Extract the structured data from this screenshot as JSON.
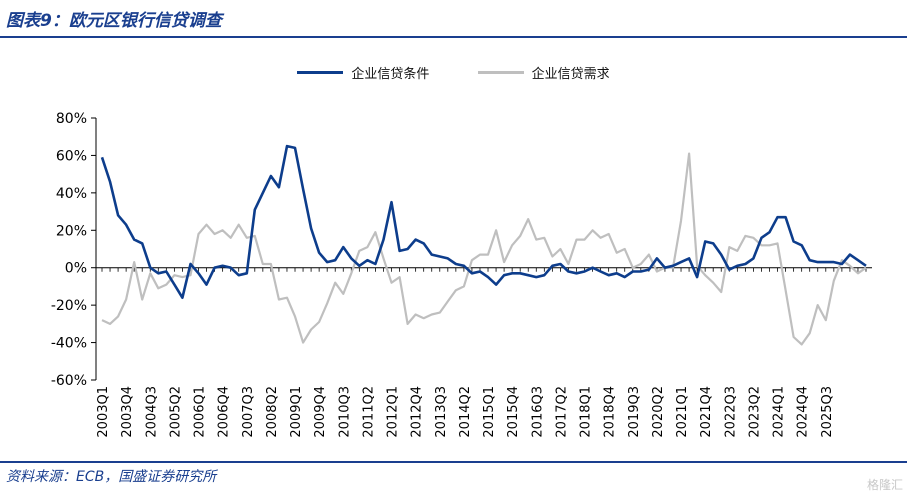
{
  "header": {
    "title": "图表9：欧元区银行信贷调查"
  },
  "footer": {
    "source": "资料来源：ECB，国盛证券研究所",
    "watermark": "格隆汇"
  },
  "chart_data": {
    "type": "line",
    "title": "图表9：欧元区银行信贷调查",
    "xlabel": "",
    "ylabel": "",
    "ylim": [
      -60,
      80
    ],
    "yticks": [
      -60,
      -40,
      -20,
      0,
      20,
      40,
      60,
      80
    ],
    "ytick_labels": [
      "-60%",
      "-40%",
      "-20%",
      "0%",
      "20%",
      "40%",
      "60%",
      "80%"
    ],
    "grid": false,
    "legend": "top-center",
    "x_tick_labels": [
      "2003Q1",
      "2003Q4",
      "2004Q3",
      "2005Q2",
      "2006Q1",
      "2006Q4",
      "2007Q3",
      "2008Q2",
      "2009Q1",
      "2009Q4",
      "2010Q3",
      "2011Q2",
      "2012Q1",
      "2012Q4",
      "2013Q3",
      "2014Q2",
      "2015Q1",
      "2015Q4",
      "2016Q3",
      "2017Q2",
      "2018Q1",
      "2018Q4",
      "2019Q3",
      "2020Q2",
      "2021Q1",
      "2021Q4",
      "2022Q3",
      "2023Q2",
      "2024Q1",
      "2024Q4",
      "2025Q3"
    ],
    "series": [
      {
        "name": "企业信贷条件",
        "color": "#0d3d8c",
        "values": [
          59,
          46,
          28,
          23,
          15,
          13,
          0,
          -3,
          -2,
          -9,
          -16,
          2,
          -3,
          -9,
          0,
          1,
          0,
          -4,
          -3,
          31,
          40,
          49,
          43,
          65,
          64,
          42,
          21,
          8,
          3,
          4,
          11,
          5,
          1,
          4,
          2,
          15,
          35,
          9,
          10,
          15,
          13,
          7,
          6,
          5,
          2,
          1,
          -3,
          -2,
          -5,
          -9,
          -4,
          -3,
          -3,
          -4,
          -5,
          -4,
          1,
          2,
          -2,
          -3,
          -2,
          0,
          -2,
          -4,
          -3,
          -5,
          -2,
          -2,
          -1,
          5,
          0,
          1,
          3,
          5,
          -5,
          14,
          13,
          7,
          -1,
          1,
          2,
          5,
          16,
          19,
          27,
          27,
          14,
          12,
          4,
          3,
          3,
          3,
          2,
          7,
          4,
          1
        ]
      },
      {
        "name": "企业信贷需求",
        "color": "#bfbfbf",
        "values": [
          -28,
          -30,
          -26,
          -17,
          3,
          -17,
          -3,
          -11,
          -9,
          -4,
          -5,
          -4,
          18,
          23,
          18,
          20,
          16,
          23,
          16,
          17,
          2,
          2,
          -17,
          -16,
          -26,
          -40,
          -33,
          -29,
          -19,
          -8,
          -14,
          -3,
          9,
          11,
          19,
          5,
          -8,
          -5,
          -30,
          -25,
          -27,
          -25,
          -24,
          -18,
          -12,
          -10,
          4,
          7,
          7,
          20,
          3,
          12,
          17,
          26,
          15,
          16,
          6,
          10,
          2,
          15,
          15,
          20,
          16,
          18,
          8,
          10,
          0,
          2,
          7,
          -2,
          0,
          0,
          25,
          61,
          1,
          -4,
          -8,
          -13,
          11,
          9,
          17,
          16,
          12,
          12,
          13,
          -12,
          -37,
          -41,
          -35,
          -20,
          -28,
          -7,
          4,
          1,
          -3,
          0
        ]
      }
    ]
  }
}
